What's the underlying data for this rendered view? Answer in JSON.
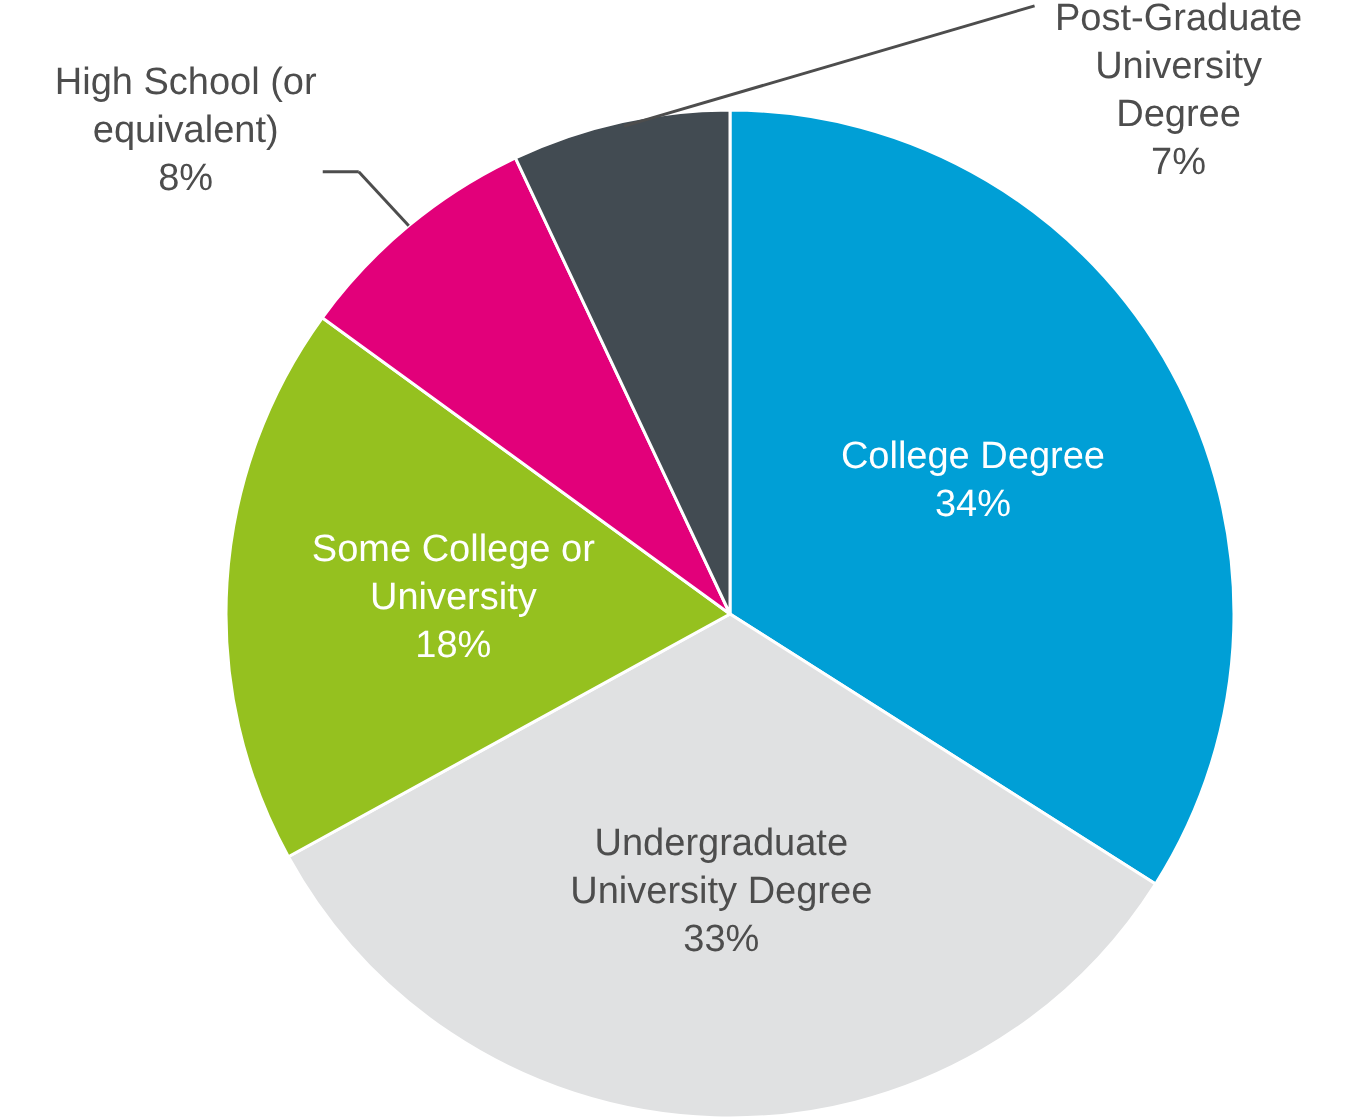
{
  "chart_data": {
    "type": "pie",
    "categories": [
      "College Degree",
      "Undergraduate\nUniversity Degree",
      "Some College or\nUniversity",
      "High School (or\nequivalent)",
      "Post-Graduate\nUniversity\nDegree"
    ],
    "values": [
      34,
      33,
      18,
      8,
      7
    ],
    "value_labels": [
      "34%",
      "33%",
      "18%",
      "8%",
      "7%"
    ],
    "colors": [
      "#009fd6",
      "#e0e1e2",
      "#95c11f",
      "#e2007a",
      "#424b52"
    ]
  }
}
